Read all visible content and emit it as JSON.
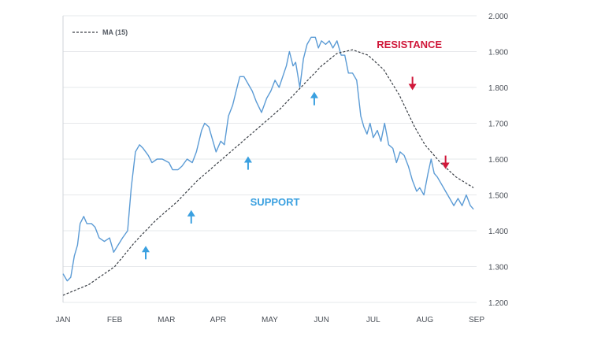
{
  "chart_data": {
    "type": "line",
    "x_ticks": [
      "JAN",
      "FEB",
      "MAR",
      "APR",
      "MAY",
      "JUN",
      "JUL",
      "AUG",
      "SEP"
    ],
    "y_ticks": [
      "1.200",
      "1.300",
      "1.400",
      "1.500",
      "1.600",
      "1.700",
      "1.800",
      "1.900",
      "2.000"
    ],
    "ylim": [
      1.2,
      2.0
    ],
    "xlim": [
      0,
      8
    ],
    "grid": "horizontal",
    "legend": {
      "label": "MA (15)",
      "position": "top-left"
    },
    "series": [
      {
        "role": "price",
        "points": [
          [
            0.0,
            1.28
          ],
          [
            0.08,
            1.26
          ],
          [
            0.15,
            1.27
          ],
          [
            0.22,
            1.33
          ],
          [
            0.28,
            1.36
          ],
          [
            0.33,
            1.42
          ],
          [
            0.4,
            1.44
          ],
          [
            0.46,
            1.42
          ],
          [
            0.55,
            1.42
          ],
          [
            0.62,
            1.41
          ],
          [
            0.7,
            1.38
          ],
          [
            0.8,
            1.37
          ],
          [
            0.9,
            1.38
          ],
          [
            0.98,
            1.34
          ],
          [
            1.15,
            1.38
          ],
          [
            1.25,
            1.4
          ],
          [
            1.32,
            1.52
          ],
          [
            1.4,
            1.62
          ],
          [
            1.48,
            1.64
          ],
          [
            1.55,
            1.63
          ],
          [
            1.65,
            1.61
          ],
          [
            1.72,
            1.59
          ],
          [
            1.82,
            1.6
          ],
          [
            1.92,
            1.6
          ],
          [
            2.05,
            1.59
          ],
          [
            2.12,
            1.57
          ],
          [
            2.22,
            1.57
          ],
          [
            2.3,
            1.58
          ],
          [
            2.4,
            1.6
          ],
          [
            2.5,
            1.59
          ],
          [
            2.58,
            1.62
          ],
          [
            2.68,
            1.68
          ],
          [
            2.74,
            1.7
          ],
          [
            2.82,
            1.69
          ],
          [
            2.88,
            1.66
          ],
          [
            2.96,
            1.62
          ],
          [
            3.05,
            1.65
          ],
          [
            3.12,
            1.64
          ],
          [
            3.2,
            1.72
          ],
          [
            3.28,
            1.75
          ],
          [
            3.35,
            1.79
          ],
          [
            3.42,
            1.83
          ],
          [
            3.5,
            1.83
          ],
          [
            3.58,
            1.81
          ],
          [
            3.66,
            1.79
          ],
          [
            3.74,
            1.76
          ],
          [
            3.84,
            1.73
          ],
          [
            3.94,
            1.77
          ],
          [
            4.02,
            1.79
          ],
          [
            4.1,
            1.82
          ],
          [
            4.18,
            1.8
          ],
          [
            4.25,
            1.83
          ],
          [
            4.32,
            1.86
          ],
          [
            4.38,
            1.9
          ],
          [
            4.45,
            1.86
          ],
          [
            4.5,
            1.87
          ],
          [
            4.58,
            1.8
          ],
          [
            4.65,
            1.88
          ],
          [
            4.72,
            1.92
          ],
          [
            4.8,
            1.94
          ],
          [
            4.88,
            1.94
          ],
          [
            4.94,
            1.91
          ],
          [
            5.0,
            1.93
          ],
          [
            5.08,
            1.92
          ],
          [
            5.15,
            1.93
          ],
          [
            5.22,
            1.91
          ],
          [
            5.3,
            1.93
          ],
          [
            5.38,
            1.89
          ],
          [
            5.45,
            1.89
          ],
          [
            5.52,
            1.84
          ],
          [
            5.6,
            1.84
          ],
          [
            5.68,
            1.82
          ],
          [
            5.76,
            1.72
          ],
          [
            5.82,
            1.69
          ],
          [
            5.88,
            1.67
          ],
          [
            5.94,
            1.7
          ],
          [
            6.0,
            1.66
          ],
          [
            6.08,
            1.68
          ],
          [
            6.15,
            1.65
          ],
          [
            6.22,
            1.7
          ],
          [
            6.3,
            1.64
          ],
          [
            6.38,
            1.63
          ],
          [
            6.45,
            1.59
          ],
          [
            6.52,
            1.62
          ],
          [
            6.6,
            1.61
          ],
          [
            6.68,
            1.58
          ],
          [
            6.76,
            1.54
          ],
          [
            6.84,
            1.51
          ],
          [
            6.9,
            1.52
          ],
          [
            6.98,
            1.5
          ],
          [
            7.06,
            1.56
          ],
          [
            7.12,
            1.6
          ],
          [
            7.18,
            1.56
          ],
          [
            7.24,
            1.55
          ],
          [
            7.32,
            1.53
          ],
          [
            7.4,
            1.51
          ],
          [
            7.48,
            1.49
          ],
          [
            7.56,
            1.47
          ],
          [
            7.64,
            1.49
          ],
          [
            7.72,
            1.47
          ],
          [
            7.8,
            1.5
          ],
          [
            7.88,
            1.47
          ],
          [
            7.94,
            1.46
          ]
        ]
      },
      {
        "name": "MA (15)",
        "role": "moving_average",
        "points": [
          [
            0.0,
            1.22
          ],
          [
            0.5,
            1.25
          ],
          [
            1.0,
            1.3
          ],
          [
            1.4,
            1.37
          ],
          [
            1.8,
            1.43
          ],
          [
            2.2,
            1.48
          ],
          [
            2.6,
            1.54
          ],
          [
            3.0,
            1.59
          ],
          [
            3.4,
            1.64
          ],
          [
            3.8,
            1.69
          ],
          [
            4.2,
            1.74
          ],
          [
            4.6,
            1.8
          ],
          [
            5.0,
            1.86
          ],
          [
            5.3,
            1.895
          ],
          [
            5.6,
            1.905
          ],
          [
            5.9,
            1.89
          ],
          [
            6.2,
            1.85
          ],
          [
            6.5,
            1.78
          ],
          [
            6.8,
            1.69
          ],
          [
            7.0,
            1.64
          ],
          [
            7.3,
            1.59
          ],
          [
            7.6,
            1.55
          ],
          [
            7.94,
            1.52
          ]
        ]
      }
    ],
    "annotations": [
      {
        "text": "RESISTANCE",
        "color": "#d0183a",
        "x": 6.7,
        "y": 1.91
      },
      {
        "text": "SUPPORT",
        "color": "#3aa0e0",
        "x": 4.1,
        "y": 1.47
      }
    ],
    "markers": [
      {
        "direction": "up",
        "color": "#3aa0e0",
        "x": 1.6,
        "y": 1.34
      },
      {
        "direction": "up",
        "color": "#3aa0e0",
        "x": 2.48,
        "y": 1.44
      },
      {
        "direction": "up",
        "color": "#3aa0e0",
        "x": 3.58,
        "y": 1.59
      },
      {
        "direction": "up",
        "color": "#3aa0e0",
        "x": 4.86,
        "y": 1.77
      },
      {
        "direction": "down",
        "color": "#d0183a",
        "x": 6.76,
        "y": 1.81
      },
      {
        "direction": "down",
        "color": "#d0183a",
        "x": 7.4,
        "y": 1.59
      }
    ],
    "colors": {
      "price_line": "#5b9bd5",
      "ma_line": "#3a3f46",
      "grid": "#e6e8eb",
      "axis_text": "#4a4f57"
    }
  }
}
